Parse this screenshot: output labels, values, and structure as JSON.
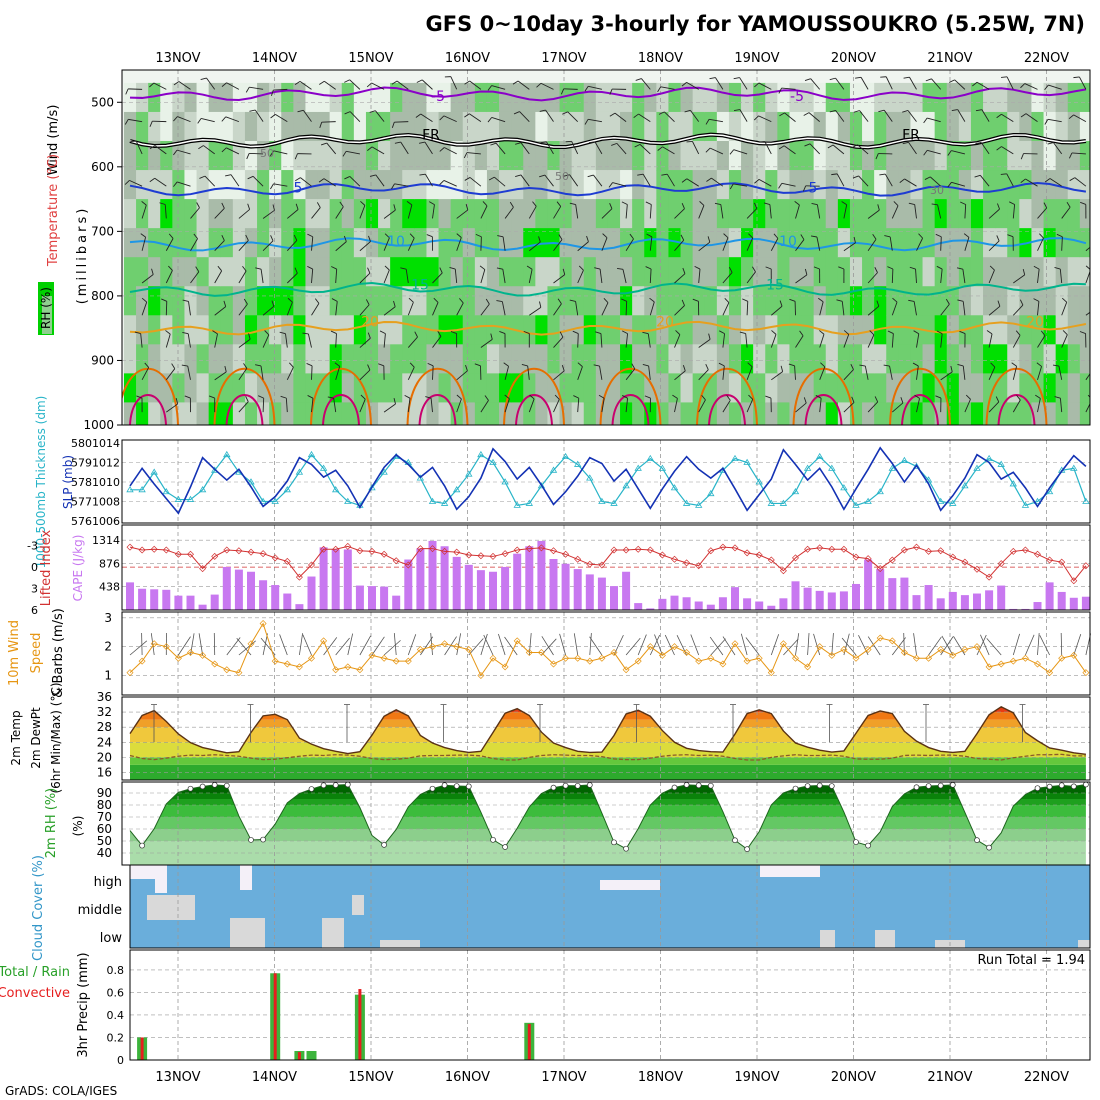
{
  "title": "GFS 0~10day 3-hourly for YAMOUSSOUKRO (5.25W, 7N)",
  "footer": "GrADS: COLA/IGES",
  "colors": {
    "rh_fill": [
      "#e8f2e8",
      "#c9d6c9",
      "#a9bba9",
      "#6fcf6f",
      "#00e000"
    ],
    "temperature_lines": {
      "-5": "#8a00c8",
      "0": "#000000",
      "5": "#1e3cd2",
      "10": "#1e96e6",
      "15": "#00b48c",
      "20": "#e6a01e",
      "25": "#e66e00",
      "30": "#c8006e"
    },
    "slp": "#1432b4",
    "thickness": "#28b4c8",
    "lifted_index": "#d23232",
    "cape": "#c878f0",
    "wind10m": "#e69614",
    "temp2m_bands": [
      "#2daa2d",
      "#64c83c",
      "#dcdc3c",
      "#f0c83c",
      "#f0a028",
      "#f07814",
      "#e63c14",
      "#c81e0a"
    ],
    "dewpoint": "#8c5a28",
    "rh2m_bands": [
      "#aadcaa",
      "#8ccf8c",
      "#64c864",
      "#3cbc3c",
      "#1ea01e",
      "#0a820a",
      "#006400"
    ],
    "cloud_cover": "#6aaedb",
    "cloud_clear": "#d9d9d9",
    "precip_total": "#3cb43c",
    "precip_convective": "#e61e1e"
  },
  "x_axis": {
    "dates": [
      "13NOV",
      "14NOV",
      "15NOV",
      "16NOV",
      "17NOV",
      "18NOV",
      "19NOV",
      "20NOV",
      "21NOV",
      "22NOV"
    ]
  },
  "chart_data": [
    {
      "type": "heatmap",
      "panel": "upper_air",
      "ylabels": [
        "Wind (m/s)",
        "Temperature (°C)",
        "RH (%)"
      ],
      "ylabel_units": "(millibars)",
      "y_ticks": [
        500,
        600,
        700,
        800,
        900,
        1000
      ],
      "ylim": [
        1000,
        450
      ],
      "isotherm_labels": [
        {
          "text": "-5",
          "level": 490
        },
        {
          "text": "FR",
          "level": 550
        },
        {
          "text": "5",
          "level": 632
        },
        {
          "text": "10",
          "level": 715
        },
        {
          "text": "15",
          "level": 782
        },
        {
          "text": "20",
          "level": 840
        }
      ],
      "rh_labels": [
        "50",
        "30"
      ],
      "isotherm_levels": [
        {
          "temp": -5,
          "base": 487
        },
        {
          "temp": 0,
          "base": 560
        },
        {
          "temp": 5,
          "base": 635
        },
        {
          "temp": 10,
          "base": 720
        },
        {
          "temp": 15,
          "base": 790
        },
        {
          "temp": 20,
          "base": 850
        }
      ]
    },
    {
      "type": "line",
      "panel": "slp_thickness",
      "ylabels": [
        "1000-500mb Thickness (dm)",
        "SLP (mb)"
      ],
      "y_left_ticks": [
        576,
        577,
        578,
        579,
        580
      ],
      "y_right_ticks": [
        1006,
        1008,
        1010,
        1012,
        1014
      ],
      "series": [
        {
          "name": "SLP (mb)",
          "values": [
            1009.6,
            1011.4,
            1009.8,
            1008.3,
            1006.8,
            1009.5,
            1012.5,
            1011.3,
            1010.2,
            1011.3,
            1009.5,
            1007.5,
            1008.5,
            1010.1,
            1012.5,
            1011.8,
            1010.5,
            1011.2,
            1009.6,
            1007.4,
            1009.5,
            1011.5,
            1012.8,
            1011.8,
            1010.5,
            1011.5,
            1009.6,
            1007.2,
            1008.5,
            1010.4,
            1013.4,
            1012.1,
            1010.3,
            1011.5,
            1009.7,
            1007.7,
            1009.0,
            1010.6,
            1012.5,
            1011.9,
            1010.1,
            1011.3,
            1009.3,
            1007.3,
            1009.3,
            1011.1,
            1012.6,
            1011.3,
            1010.4,
            1011.4,
            1009.3,
            1007.1,
            1008.7,
            1010.3,
            1013.3,
            1011.8,
            1010.2,
            1011.4,
            1009.5,
            1007.2,
            1009.3,
            1011.3,
            1013.5,
            1011.9,
            1010.0,
            1011.7,
            1009.8,
            1007.1,
            1008.6,
            1010.4,
            1012.8,
            1012.0,
            1010.3,
            1011.0,
            1009.4,
            1007.5,
            1009.4,
            1011.1,
            1012.7,
            1011.6
          ]
        },
        {
          "name": "Thickness (dm)",
          "values": [
            577.6,
            577.6,
            578.5,
            577.5,
            577.1,
            577.1,
            577.6,
            578.6,
            579.4,
            578.5,
            578.0,
            577.0,
            577.0,
            577.6,
            578.5,
            579.4,
            578.7,
            577.6,
            577.0,
            576.8,
            577.7,
            578.5,
            579.3,
            579.0,
            578.2,
            577.0,
            576.9,
            577.6,
            578.4,
            579.4,
            579.0,
            578.0,
            576.8,
            576.9,
            577.8,
            578.6,
            579.3,
            578.9,
            578.2,
            577.0,
            576.9,
            577.8,
            578.7,
            579.2,
            578.7,
            577.7,
            576.9,
            576.8,
            577.4,
            578.6,
            579.2,
            579.0,
            578.0,
            576.9,
            576.9,
            577.5,
            578.7,
            579.3,
            578.7,
            577.7,
            576.8,
            577.0,
            577.5,
            578.7,
            579.1,
            578.8,
            578.1,
            577.0,
            576.9,
            577.8,
            578.7,
            579.2,
            578.9,
            577.9,
            576.8,
            577.0,
            577.5,
            578.6,
            578.7,
            577.0
          ]
        }
      ]
    },
    {
      "type": "bar",
      "panel": "stability",
      "ylabels": [
        "Lifted Index",
        "CAPE (J/kg)"
      ],
      "y_left_ticks": [
        -3,
        0,
        3,
        6
      ],
      "y_right_ticks": [
        438,
        876,
        1314
      ],
      "series": [
        {
          "name": "CAPE (J/kg)",
          "values": [
            520,
            400,
            390,
            380,
            270,
            270,
            100,
            290,
            810,
            760,
            720,
            560,
            470,
            310,
            110,
            630,
            1180,
            1140,
            1140,
            460,
            450,
            440,
            270,
            950,
            1160,
            1300,
            1200,
            1000,
            850,
            750,
            720,
            810,
            1060,
            1200,
            1300,
            960,
            870,
            770,
            670,
            610,
            450,
            720,
            130,
            30,
            210,
            270,
            240,
            160,
            100,
            240,
            430,
            220,
            160,
            80,
            220,
            540,
            420,
            360,
            330,
            350,
            490,
            950,
            770,
            600,
            610,
            280,
            470,
            220,
            340,
            280,
            310,
            370,
            460,
            20,
            20,
            150,
            520,
            340,
            230,
            250
          ]
        },
        {
          "name": "Lifted Index",
          "values": [
            -2.8,
            -2.4,
            -2.5,
            -2.4,
            -1.8,
            -1.8,
            0.2,
            -1.5,
            -2.4,
            -2.3,
            -2.1,
            -1.9,
            -1.3,
            -0.8,
            1.4,
            -0.3,
            -2.5,
            -2.5,
            -2.9,
            -2.3,
            -2.2,
            -1.8,
            -0.9,
            -0.3,
            -2.6,
            -2.6,
            -2.2,
            -2.1,
            -1.7,
            -1.6,
            -1.5,
            -1.9,
            -2.4,
            -2.6,
            -2.7,
            -2.3,
            -1.8,
            -1.1,
            -0.4,
            -0.3,
            -2.4,
            -2.4,
            -2.5,
            -2.4,
            -1.7,
            -1.1,
            -0.6,
            -0.2,
            -2.3,
            -2.8,
            -2.7,
            -2.0,
            -1.7,
            -1.0,
            0.5,
            -1.3,
            -2.5,
            -2.7,
            -2.5,
            -2.5,
            -1.4,
            -1.2,
            0.2,
            -1.0,
            -2.4,
            -2.8,
            -2.2,
            -2.3,
            -1.4,
            -0.7,
            0.3,
            1.4,
            -0.5,
            -2.2,
            -2.4,
            -1.8,
            -1.0,
            -0.7,
            1.9,
            -0.2
          ]
        }
      ]
    },
    {
      "type": "line",
      "panel": "wind10m",
      "ylabels": [
        "10m Wind",
        "Speed",
        "& Barbs (m/s)"
      ],
      "y_ticks": [
        1,
        2,
        3
      ],
      "series": [
        {
          "name": "Speed (m/s)",
          "values": [
            1.1,
            1.5,
            2.1,
            2.0,
            1.6,
            1.8,
            1.7,
            1.4,
            1.2,
            1.1,
            2.1,
            2.8,
            1.5,
            1.4,
            1.3,
            1.6,
            2.2,
            1.2,
            1.3,
            1.2,
            1.7,
            1.6,
            1.5,
            1.5,
            1.9,
            2.0,
            2.1,
            2.0,
            1.9,
            1.0,
            1.6,
            1.3,
            2.2,
            1.8,
            1.8,
            1.4,
            1.6,
            1.6,
            1.5,
            1.6,
            1.8,
            1.2,
            1.5,
            2.0,
            1.7,
            2.0,
            1.8,
            1.5,
            1.6,
            1.4,
            2.1,
            1.5,
            1.6,
            1.1,
            2.1,
            1.6,
            1.3,
            2.0,
            1.7,
            1.9,
            1.6,
            1.9,
            2.3,
            2.2,
            1.8,
            1.6,
            1.6,
            1.9,
            1.7,
            1.9,
            2.0,
            1.3,
            1.4,
            1.5,
            1.6,
            1.4,
            1.1,
            1.6,
            1.7,
            1.1
          ]
        }
      ]
    },
    {
      "type": "area",
      "panel": "temp2m",
      "ylabels": [
        "2m Temp",
        "2m DewPt",
        "(6hr Min/Max) (°C)"
      ],
      "y_ticks": [
        16,
        20,
        24,
        28,
        32,
        36
      ],
      "series": [
        {
          "name": "2m Temp",
          "values": [
            26.3,
            31.1,
            32.4,
            29.5,
            26.2,
            23.9,
            22.6,
            21.9,
            21.2,
            21.5,
            26.6,
            31.0,
            31.4,
            30.0,
            25.1,
            23.5,
            22.3,
            21.6,
            21.0,
            21.5,
            25.9,
            30.9,
            32.6,
            31.0,
            25.8,
            23.8,
            22.6,
            21.8,
            21.3,
            21.6,
            26.6,
            31.7,
            32.9,
            31.1,
            26.7,
            23.8,
            22.6,
            21.6,
            21.3,
            21.4,
            25.8,
            31.5,
            32.5,
            30.9,
            27.1,
            24.0,
            22.4,
            21.8,
            21.5,
            21.4,
            26.2,
            31.6,
            32.6,
            31.6,
            27.0,
            23.8,
            22.7,
            21.9,
            21.4,
            21.7,
            26.4,
            31.1,
            32.3,
            31.6,
            26.9,
            24.3,
            22.6,
            21.6,
            21.3,
            21.6,
            26.3,
            31.3,
            33.4,
            31.8,
            26.6,
            24.4,
            22.5,
            21.9,
            21.2,
            20.8
          ]
        },
        {
          "name": "2m DewPt",
          "values": [
            20.5,
            19.7,
            19.4,
            19.8,
            20.3,
            20.6,
            20.5,
            20.7,
            20.5,
            20.3,
            19.8,
            19.4,
            19.5,
            19.9,
            20.3,
            20.6,
            20.5,
            20.7,
            20.6,
            20.3,
            19.7,
            19.4,
            19.5,
            19.8,
            20.4,
            20.5,
            20.5,
            20.6,
            20.6,
            20.4,
            19.7,
            19.3,
            19.3,
            20.0,
            20.5,
            20.7,
            20.6,
            20.5,
            20.5,
            20.2,
            19.6,
            19.4,
            19.4,
            19.8,
            20.3,
            20.6,
            20.7,
            20.5,
            20.6,
            20.3,
            19.7,
            19.3,
            19.3,
            20.0,
            20.4,
            20.7,
            20.5,
            20.5,
            20.6,
            20.3,
            19.6,
            19.5,
            19.5,
            19.8,
            20.5,
            20.6,
            20.5,
            20.6,
            20.6,
            20.3,
            19.7,
            19.5,
            19.3,
            19.9,
            20.3,
            20.7,
            20.7,
            20.8,
            20.4,
            20.4
          ]
        }
      ]
    },
    {
      "type": "area",
      "panel": "rh2m",
      "ylabels": [
        "2m RH (%)"
      ],
      "y_ticks": [
        40,
        50,
        60,
        70,
        80,
        90
      ],
      "series": [
        {
          "name": "2m RH (%)",
          "values": [
            58.7,
            46.2,
            60.2,
            80.9,
            90.6,
            93.6,
            95.4,
            96.8,
            96.1,
            70.8,
            50.9,
            51.2,
            64.1,
            81.8,
            89.5,
            93.3,
            96.4,
            96.6,
            97.1,
            77.8,
            54.6,
            46.8,
            59.6,
            78.4,
            88.8,
            93.6,
            96.5,
            95.8,
            95.5,
            74.0,
            51.0,
            45.0,
            60.6,
            78.3,
            89.6,
            94.5,
            96.1,
            96.0,
            96.7,
            73.2,
            48.9,
            43.6,
            60.3,
            80.0,
            89.9,
            94.6,
            96.8,
            96.4,
            96.1,
            74.4,
            50.6,
            43.2,
            57.8,
            80.1,
            90.1,
            93.7,
            95.8,
            96.3,
            95.8,
            74.1,
            49.1,
            46.2,
            57.6,
            78.7,
            89.2,
            94.8,
            95.8,
            96.2,
            96.8,
            73.8,
            50.7,
            44.5,
            56.8,
            79.1,
            88.7,
            94.0,
            95.3,
            96.4,
            95.5,
            97.1
          ]
        }
      ]
    },
    {
      "type": "bar",
      "panel": "cloud_cover",
      "ylabels": [
        "Cloud Cover (%)"
      ],
      "levels": [
        "high",
        "middle",
        "low"
      ]
    },
    {
      "type": "bar",
      "panel": "precip",
      "ylabels": [
        "Total / Rain",
        "Convective",
        "3hr Precip (mm)"
      ],
      "y_ticks": [
        0,
        0.2,
        0.4,
        0.6,
        0.8
      ],
      "run_total_label": "Run Total = 1.94",
      "x_unit": "hours_since_start",
      "series": [
        {
          "name": "Total / Rain",
          "x": [
            3,
            36,
            42,
            45,
            57,
            99
          ],
          "values": [
            0.2,
            0.77,
            0.08,
            0.08,
            0.58,
            0.33
          ]
        },
        {
          "name": "Convective",
          "x": [
            3,
            36,
            42,
            45,
            57,
            99
          ],
          "values": [
            0.2,
            0.77,
            0.07,
            0.0,
            0.63,
            0.32
          ]
        }
      ]
    }
  ]
}
